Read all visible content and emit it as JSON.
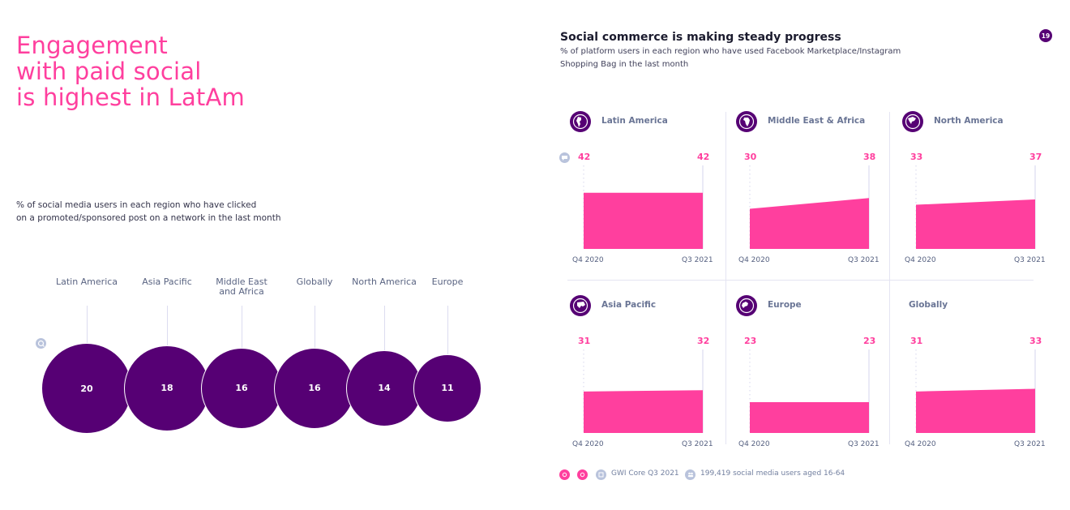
{
  "left": {
    "title": "Engagement\nwith paid social\nis highest in LatAm",
    "subtitle": "% of social media users in each region who have clicked\non a promoted/sponsored post on a network in the last month"
  },
  "right": {
    "title": "Social commerce is making steady progress",
    "subtitle": "% of platform users in each region who have used Facebook Marketplace/Instagram Shopping Bag in the last month"
  },
  "page_number": "19",
  "footer": {
    "source": "GWI Core Q3 2021",
    "base": "199,419 social media users aged 16-64"
  },
  "colors": {
    "purple": "#560074",
    "pink": "#ff3f9e",
    "label": "#5a6482"
  },
  "chart_data": [
    {
      "type": "bubble",
      "categories": [
        "Latin America",
        "Asia Pacific",
        "Middle East\nand Africa",
        "Globally",
        "North America",
        "Europe"
      ],
      "values": [
        20,
        18,
        16,
        16,
        14,
        11
      ]
    },
    {
      "type": "area",
      "x": [
        "Q4 2020",
        "Q3 2021"
      ],
      "panels": [
        {
          "region": "Latin America",
          "values": [
            42,
            42
          ],
          "icon": "globe-americas-icon"
        },
        {
          "region": "Middle East & Africa",
          "values": [
            30,
            38
          ],
          "icon": "globe-africa-icon"
        },
        {
          "region": "North America",
          "values": [
            33,
            37
          ],
          "icon": "globe-north-america-icon"
        },
        {
          "region": "Asia Pacific",
          "values": [
            31,
            32
          ],
          "icon": "globe-asia-icon"
        },
        {
          "region": "Europe",
          "values": [
            23,
            23
          ],
          "icon": "globe-europe-icon"
        },
        {
          "region": "Globally",
          "values": [
            31,
            33
          ],
          "icon": ""
        }
      ]
    }
  ]
}
